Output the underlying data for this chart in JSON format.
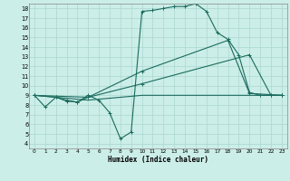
{
  "title": "",
  "xlabel": "Humidex (Indice chaleur)",
  "background_color": "#cceee8",
  "line_color": "#1a6b5e",
  "grid_color": "#aad6cf",
  "xlim": [
    -0.5,
    23.5
  ],
  "ylim": [
    3.5,
    18.5
  ],
  "xticks": [
    0,
    1,
    2,
    3,
    4,
    5,
    6,
    7,
    8,
    9,
    10,
    11,
    12,
    13,
    14,
    15,
    16,
    17,
    18,
    19,
    20,
    21,
    22,
    23
  ],
  "yticks": [
    4,
    5,
    6,
    7,
    8,
    9,
    10,
    11,
    12,
    13,
    14,
    15,
    16,
    17,
    18
  ],
  "line1_x": [
    0,
    1,
    2,
    3,
    4,
    5,
    6,
    7,
    8,
    9,
    10,
    11,
    12,
    13,
    14,
    15,
    16,
    17,
    18,
    19,
    20,
    21,
    22,
    23
  ],
  "line1_y": [
    9.0,
    7.8,
    8.8,
    8.4,
    8.3,
    9.0,
    8.5,
    7.2,
    4.5,
    5.2,
    17.7,
    17.8,
    18.0,
    18.2,
    18.2,
    18.5,
    17.7,
    15.5,
    14.8,
    13.2,
    9.3,
    9.0,
    9.0,
    9.0
  ],
  "line2_x": [
    0,
    2,
    3,
    4,
    5,
    10,
    20,
    22,
    23
  ],
  "line2_y": [
    9.0,
    8.8,
    8.5,
    8.3,
    8.8,
    10.2,
    13.2,
    9.0,
    9.0
  ],
  "line3_x": [
    0,
    5,
    10,
    18,
    20,
    23
  ],
  "line3_y": [
    9.0,
    8.8,
    11.5,
    14.7,
    9.2,
    9.0
  ],
  "line4_x": [
    0,
    5,
    10,
    20,
    23
  ],
  "line4_y": [
    9.0,
    8.5,
    9.0,
    9.0,
    9.0
  ]
}
